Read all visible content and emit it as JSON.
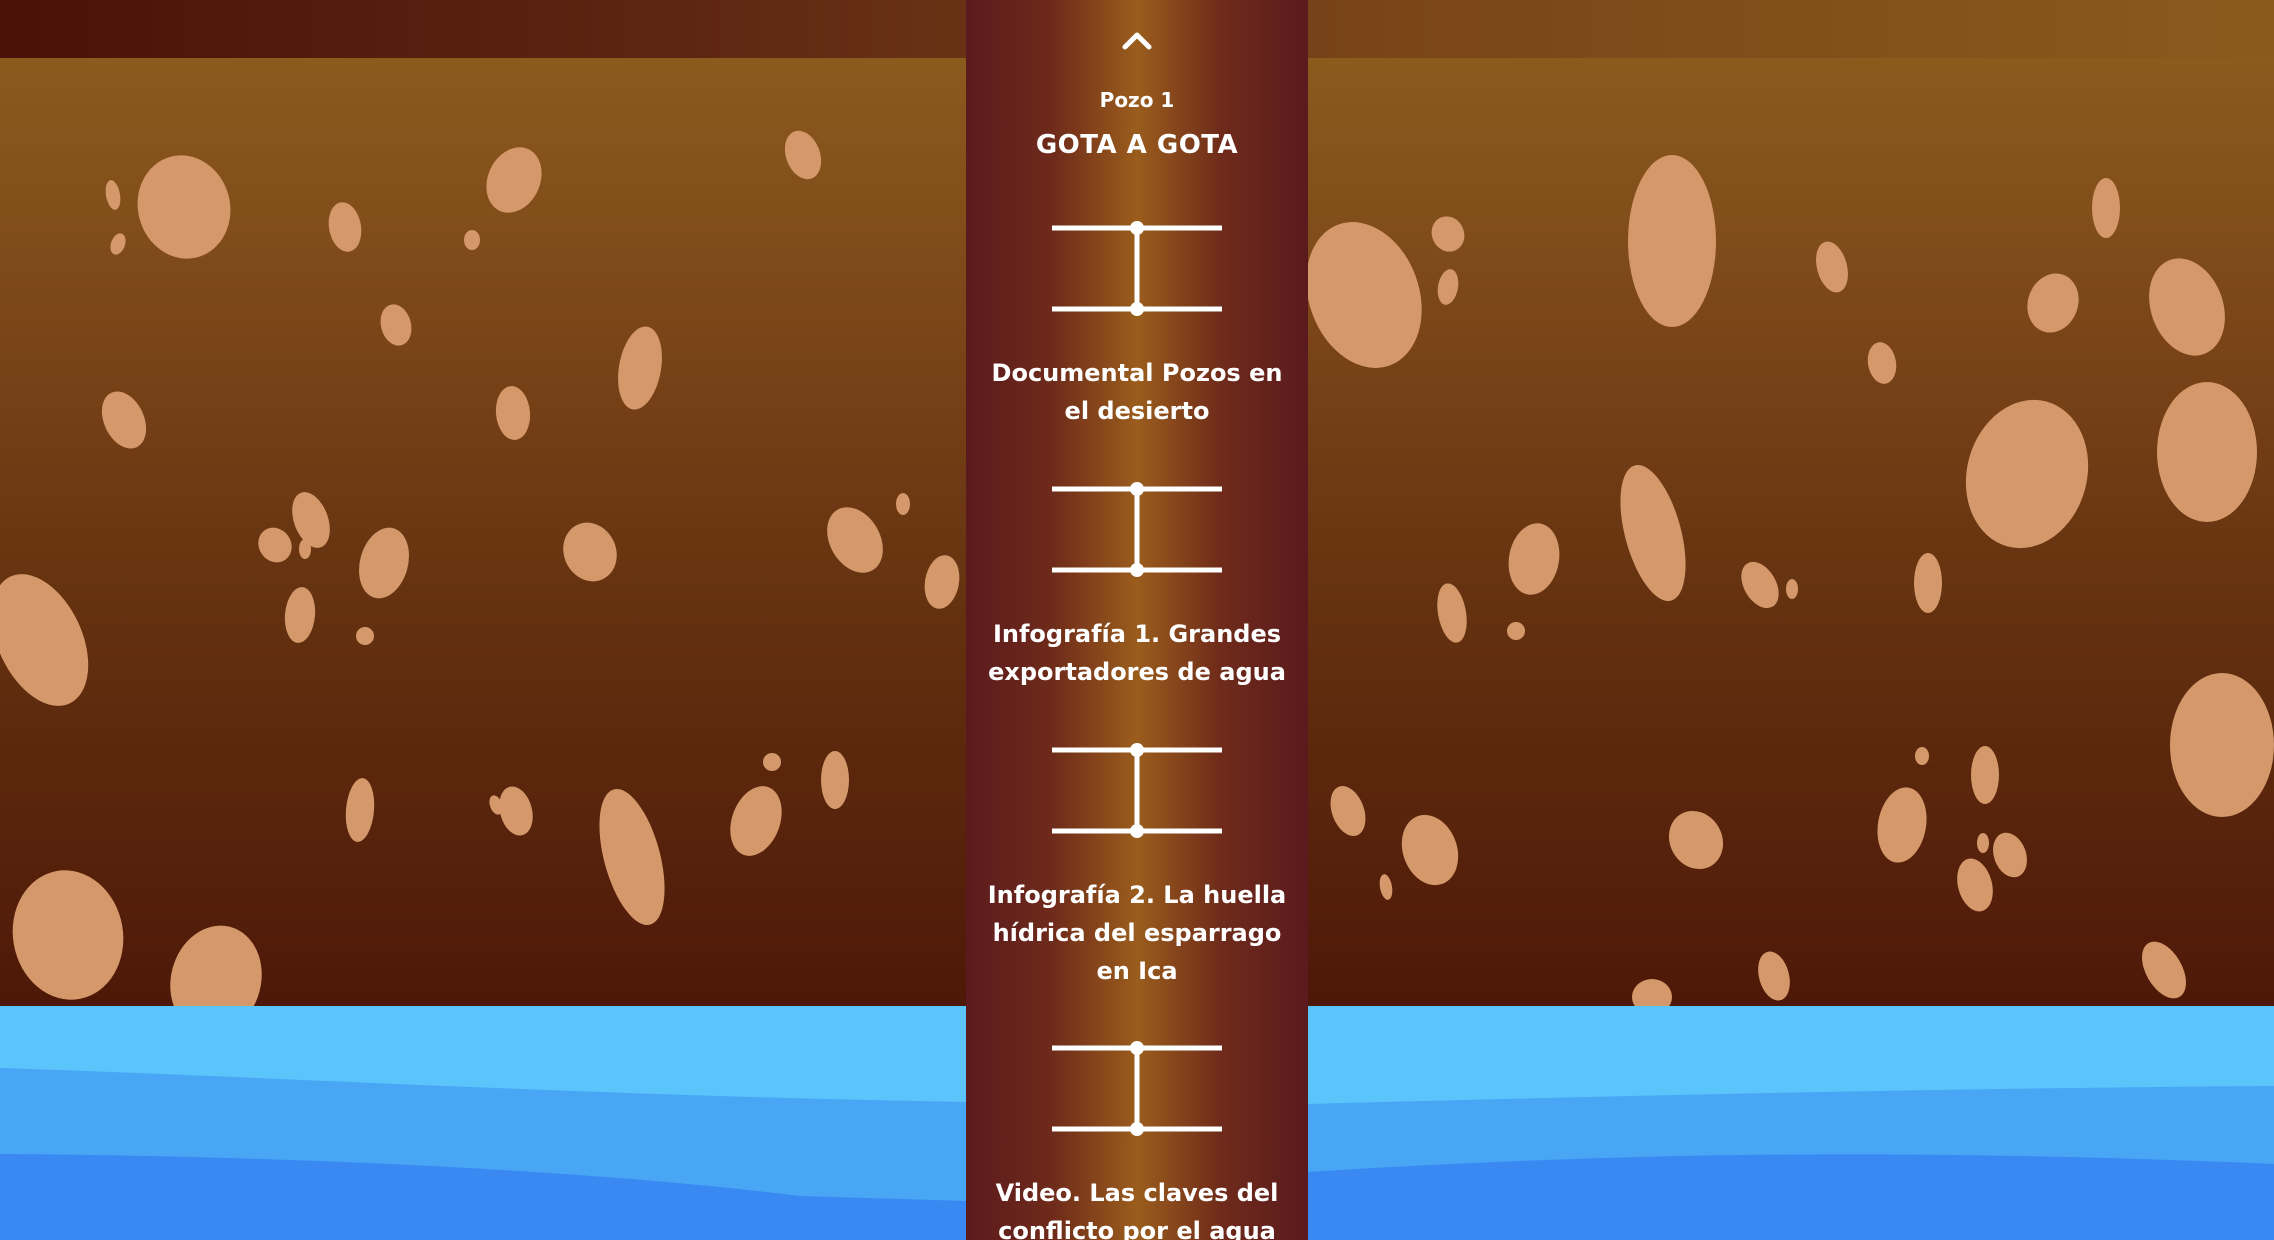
{
  "panel": {
    "up_icon": "chevron-up-icon",
    "well_label": "Pozo 1",
    "title": "GOTA A GOTA",
    "items": [
      {
        "label": "Documental Pozos en el desierto",
        "icon": "pipe-marker-icon"
      },
      {
        "label": "Infografía 1. Grandes exportadores de agua",
        "icon": "pipe-marker-icon"
      },
      {
        "label": "Infografía 2. La huella hídrica del esparrago en Ica",
        "icon": "pipe-marker-icon"
      },
      {
        "label": "Video. Las claves del conflicto por el agua",
        "icon": "pipe-marker-icon"
      }
    ]
  },
  "colors": {
    "soil_top": "#8b5a1d",
    "soil_bottom": "#4e1808",
    "rock": "#d4986a",
    "water_light": "#5bc4fb",
    "water_mid": "#48a6f5",
    "water_deep": "#3a88f2",
    "panel_center": "#9a5d1c",
    "panel_edge": "#5b1a1e"
  }
}
